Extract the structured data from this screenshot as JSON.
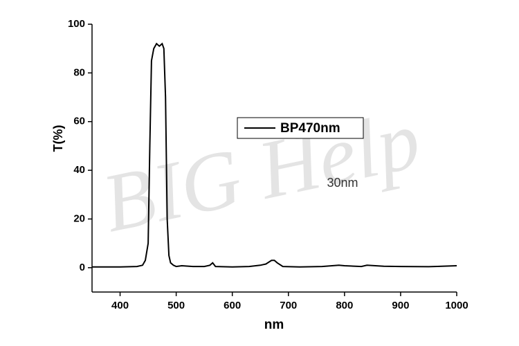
{
  "chart_data": {
    "type": "line",
    "x_label": "nm",
    "y_label": "T(%)",
    "annotation": "30nm",
    "watermark": "BIG Help",
    "legend": "center",
    "xlim": [
      350,
      1000
    ],
    "xticks": [
      400,
      500,
      600,
      700,
      800,
      900,
      1000
    ],
    "ylim": [
      -10,
      100
    ],
    "yticks": [
      0,
      20,
      40,
      60,
      80,
      100
    ],
    "series": [
      {
        "name": "BP470nm",
        "color": "#000000",
        "x": [
          350,
          400,
          430,
          440,
          445,
          450,
          453,
          456,
          460,
          465,
          470,
          475,
          478,
          481,
          484,
          487,
          490,
          495,
          500,
          510,
          530,
          550,
          560,
          565,
          570,
          600,
          630,
          650,
          660,
          670,
          675,
          680,
          690,
          720,
          760,
          790,
          800,
          830,
          840,
          870,
          900,
          950,
          1000
        ],
        "values": [
          0.3,
          0.3,
          0.5,
          1,
          3,
          10,
          50,
          85,
          90,
          92,
          91,
          92,
          90,
          70,
          20,
          5,
          2,
          1,
          0.5,
          0.8,
          0.5,
          0.5,
          1,
          2,
          0.5,
          0.3,
          0.5,
          1,
          1.5,
          3,
          3,
          2,
          0.5,
          0.3,
          0.5,
          1,
          0.8,
          0.5,
          1,
          0.6,
          0.5,
          0.4,
          0.8
        ]
      }
    ]
  }
}
